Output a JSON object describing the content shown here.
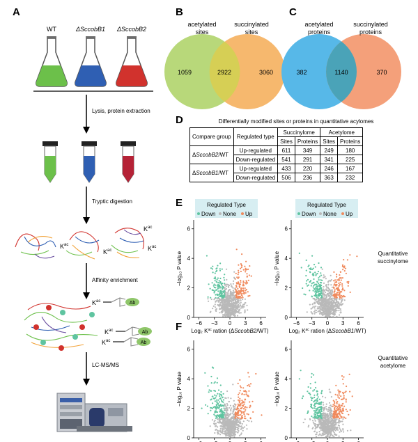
{
  "panels": {
    "A": "A",
    "B": "B",
    "C": "C",
    "D": "D",
    "E": "E",
    "F": "F"
  },
  "workflow": {
    "strains": [
      "WT",
      "ΔSccobB1",
      "ΔSccobB2"
    ],
    "flask_colors": [
      "#6cc04a",
      "#2f5fb3",
      "#d1322d"
    ],
    "steps": [
      "Lysis, protein extraction",
      "Tryptic digestion",
      "Affinity enrichment",
      "LC-MS/MS"
    ],
    "kac": "K",
    "kac_sup": "ac",
    "ab": "Ab"
  },
  "venn_sites": {
    "left_label_1": "acetylated",
    "left_label_2": "sites",
    "right_label_1": "succinylated",
    "right_label_2": "sites",
    "left_only": "1059",
    "overlap": "2922",
    "right_only": "3060",
    "left_color": "#b8d87a",
    "right_color": "#f6b86e",
    "overlap_color": "#d6cf55"
  },
  "venn_proteins": {
    "left_label_1": "acetylated",
    "left_label_2": "proteins",
    "right_label_1": "succinylated",
    "right_label_2": "proteins",
    "left_only": "382",
    "overlap": "1140",
    "right_only": "370",
    "left_color": "#57b8e8",
    "right_color": "#f4a07a",
    "overlap_color": "#4aa3b8"
  },
  "table": {
    "title": "Differentially modified sites or proteins in quantitative acylomes",
    "header": {
      "compare": "Compare group",
      "regulated": "Regulated type",
      "succ": "Succinylome",
      "acet": "Acetylome",
      "sites": "Sites",
      "proteins": "Proteins"
    },
    "groups": [
      {
        "delta": "Δ",
        "strain": "SccobB2",
        "suffix": "/WT",
        "rows": [
          {
            "type": "Up-regulated",
            "vals": [
              "611",
              "349",
              "249",
              "180"
            ]
          },
          {
            "type": "Down-regulated",
            "vals": [
              "541",
              "291",
              "341",
              "225"
            ]
          }
        ]
      },
      {
        "delta": "Δ",
        "strain": "SccobB1",
        "suffix": "/WT",
        "rows": [
          {
            "type": "Up-regulated",
            "vals": [
              "433",
              "220",
              "246",
              "167"
            ]
          },
          {
            "type": "Down-regulated",
            "vals": [
              "506",
              "236",
              "363",
              "232"
            ]
          }
        ]
      }
    ]
  },
  "volcano": {
    "legend_title": "Regulated Type",
    "legend_items": [
      "Down",
      "None",
      "Up"
    ],
    "colors": {
      "Down": "#5fc4a0",
      "None": "#b9b9b9",
      "Up": "#f08a5d"
    },
    "ylabel": "−log₁₀ P value",
    "xticks": [
      "−6",
      "−3",
      "0",
      "3",
      "6"
    ],
    "yticks": [
      "0",
      "2",
      "4",
      "6"
    ],
    "xlabel_prefix": "Log₂ K",
    "xlabel_mid": " ration (Δ",
    "xlabel_suffix": "/WT)",
    "strainB2": "SccobB2",
    "strainB1": "SccobB1",
    "row_E_label_1": "Quantitative",
    "row_E_label_2": "succinylome",
    "row_F_label_1": "Quantitative",
    "row_F_label_2": "acetylome"
  }
}
